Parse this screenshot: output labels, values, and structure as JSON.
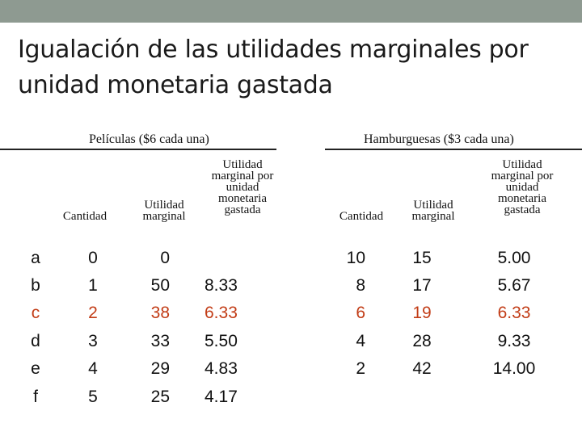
{
  "slide": {
    "title": "Igualación de las utilidades marginales por unidad monetaria gastada"
  },
  "table": {
    "group_peliculas": "Películas ($6 cada una)",
    "group_hamburguesas": "Hamburguesas ($3 cada una)",
    "headers": {
      "cantidad": "Cantidad",
      "utilidad_marginal": "Utilidad marginal",
      "utilidad_por_unidad": "Utilidad marginal por unidad monetaria gastada"
    },
    "highlight_color": "#c23c16",
    "rows": [
      {
        "label": "a",
        "p_qty": "0",
        "p_um": "0",
        "p_umu": "",
        "h_qty": "10",
        "h_um": "15",
        "h_umu": "5.00"
      },
      {
        "label": "b",
        "p_qty": "1",
        "p_um": "50",
        "p_umu": "8.33",
        "h_qty": "8",
        "h_um": "17",
        "h_umu": "5.67"
      },
      {
        "label": "c",
        "p_qty": "2",
        "p_um": "38",
        "p_umu": "6.33",
        "h_qty": "6",
        "h_um": "19",
        "h_umu": "6.33"
      },
      {
        "label": "d",
        "p_qty": "3",
        "p_um": "33",
        "p_umu": "5.50",
        "h_qty": "4",
        "h_um": "28",
        "h_umu": "9.33"
      },
      {
        "label": "e",
        "p_qty": "4",
        "p_um": "29",
        "p_umu": "4.83",
        "h_qty": "2",
        "h_um": "42",
        "h_umu": "14.00"
      },
      {
        "label": "f",
        "p_qty": "5",
        "p_um": "25",
        "p_umu": "4.17",
        "h_qty": "",
        "h_um": "",
        "h_umu": ""
      }
    ]
  }
}
